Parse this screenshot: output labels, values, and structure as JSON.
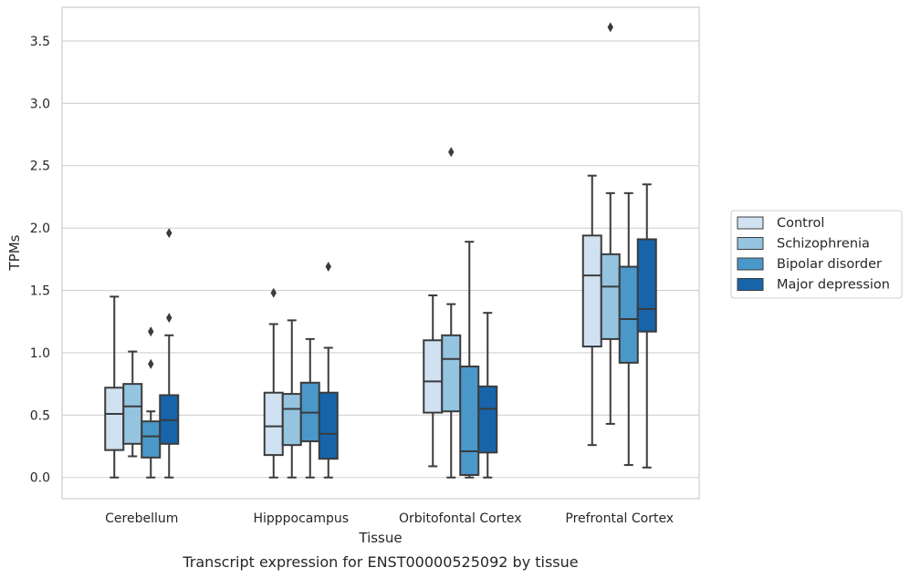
{
  "caption": "Transcript expression for ENST00000525092 by tissue",
  "chart_data": {
    "type": "box",
    "xlabel": "Tissue",
    "ylabel": "TPMs",
    "ylim": [
      -0.17,
      3.77
    ],
    "yticks": [
      "0.0",
      "0.5",
      "1.0",
      "1.5",
      "2.0",
      "2.5",
      "3.0",
      "3.5"
    ],
    "ytick_values": [
      0,
      0.5,
      1.0,
      1.5,
      2.0,
      2.5,
      3.0,
      3.5
    ],
    "grid": "horizontal",
    "legend_position": "right",
    "categories": [
      "Cerebellum",
      "Hipppocampus",
      "Orbitofontal Cortex",
      "Prefrontal Cortex"
    ],
    "series": [
      {
        "name": "Control",
        "color": "#d0e1f2",
        "boxes": [
          {
            "whislo": 0.0,
            "q1": 0.22,
            "med": 0.51,
            "q3": 0.72,
            "whishi": 1.45,
            "fliers": []
          },
          {
            "whislo": 0.0,
            "q1": 0.18,
            "med": 0.41,
            "q3": 0.68,
            "whishi": 1.23,
            "fliers": [
              1.48
            ]
          },
          {
            "whislo": 0.09,
            "q1": 0.52,
            "med": 0.77,
            "q3": 1.1,
            "whishi": 1.46,
            "fliers": []
          },
          {
            "whislo": 0.26,
            "q1": 1.05,
            "med": 1.62,
            "q3": 1.94,
            "whishi": 2.42,
            "fliers": []
          }
        ]
      },
      {
        "name": "Schizophrenia",
        "color": "#94c4df",
        "boxes": [
          {
            "whislo": 0.17,
            "q1": 0.27,
            "med": 0.57,
            "q3": 0.75,
            "whishi": 1.01,
            "fliers": []
          },
          {
            "whislo": 0.0,
            "q1": 0.26,
            "med": 0.55,
            "q3": 0.67,
            "whishi": 1.26,
            "fliers": []
          },
          {
            "whislo": 0.0,
            "q1": 0.53,
            "med": 0.95,
            "q3": 1.14,
            "whishi": 1.39,
            "fliers": [
              2.61
            ]
          },
          {
            "whislo": 0.43,
            "q1": 1.11,
            "med": 1.53,
            "q3": 1.79,
            "whishi": 2.28,
            "fliers": [
              3.61
            ]
          }
        ]
      },
      {
        "name": "Bipolar disorder",
        "color": "#4a98c9",
        "boxes": [
          {
            "whislo": 0.0,
            "q1": 0.16,
            "med": 0.33,
            "q3": 0.45,
            "whishi": 0.53,
            "fliers": [
              0.91,
              1.17
            ]
          },
          {
            "whislo": 0.0,
            "q1": 0.29,
            "med": 0.52,
            "q3": 0.76,
            "whishi": 1.11,
            "fliers": []
          },
          {
            "whislo": 0.0,
            "q1": 0.02,
            "med": 0.21,
            "q3": 0.89,
            "whishi": 1.89,
            "fliers": []
          },
          {
            "whislo": 0.1,
            "q1": 0.92,
            "med": 1.27,
            "q3": 1.69,
            "whishi": 2.28,
            "fliers": []
          }
        ]
      },
      {
        "name": "Major depression",
        "color": "#1764ab",
        "boxes": [
          {
            "whislo": 0.0,
            "q1": 0.27,
            "med": 0.46,
            "q3": 0.66,
            "whishi": 1.14,
            "fliers": [
              1.28,
              1.96
            ]
          },
          {
            "whislo": 0.0,
            "q1": 0.15,
            "med": 0.35,
            "q3": 0.68,
            "whishi": 1.04,
            "fliers": [
              1.69
            ]
          },
          {
            "whislo": 0.0,
            "q1": 0.2,
            "med": 0.55,
            "q3": 0.73,
            "whishi": 1.32,
            "fliers": []
          },
          {
            "whislo": 0.08,
            "q1": 1.17,
            "med": 1.35,
            "q3": 1.91,
            "whishi": 2.35,
            "fliers": []
          }
        ]
      }
    ]
  }
}
